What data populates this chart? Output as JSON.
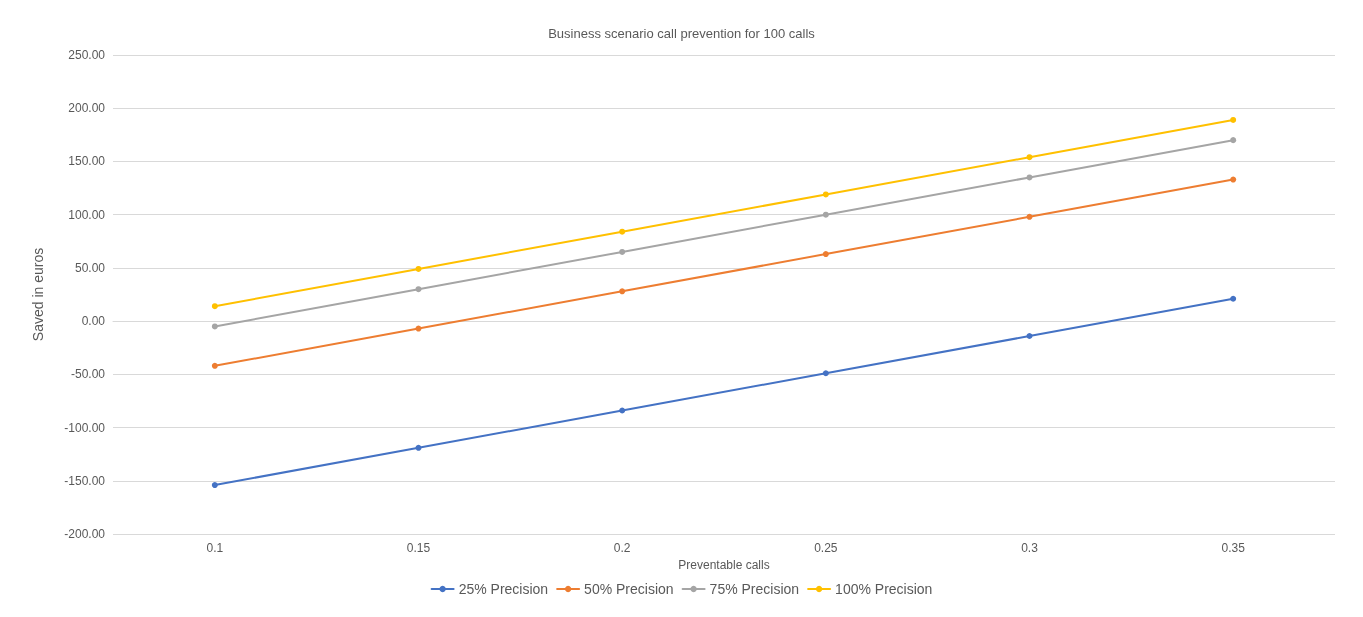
{
  "chart_data": {
    "type": "line",
    "title": "Business scenario call prevention for 100 calls",
    "xlabel": "Preventable calls",
    "ylabel": "Saved in euros",
    "categories": [
      "0.1",
      "0.15",
      "0.2",
      "0.25",
      "0.3",
      "0.35"
    ],
    "series": [
      {
        "name": "25% Precision",
        "color": "#4472c4",
        "values": [
          -154,
          -119,
          -84,
          -49,
          -14,
          21
        ]
      },
      {
        "name": "50% Precision",
        "color": "#ed7d31",
        "values": [
          -42,
          -7,
          28,
          63,
          98,
          133
        ]
      },
      {
        "name": "75% Precision",
        "color": "#a5a5a5",
        "values": [
          -5,
          30,
          65,
          100,
          135,
          170
        ]
      },
      {
        "name": "100% Precision",
        "color": "#ffc000",
        "values": [
          14,
          49,
          84,
          119,
          154,
          189
        ]
      }
    ],
    "ylim": [
      -200,
      250
    ],
    "yticks": [
      {
        "value": -200,
        "label": "-200.00"
      },
      {
        "value": -150,
        "label": "-150.00"
      },
      {
        "value": -100,
        "label": "-100.00"
      },
      {
        "value": -50,
        "label": "-50.00"
      },
      {
        "value": 0,
        "label": "0.00"
      },
      {
        "value": 50,
        "label": "50.00"
      },
      {
        "value": 100,
        "label": "100.00"
      },
      {
        "value": 150,
        "label": "150.00"
      },
      {
        "value": 200,
        "label": "200.00"
      },
      {
        "value": 250,
        "label": "250.00"
      }
    ],
    "grid": "y",
    "legend": "bottom",
    "marker": "circle",
    "line_style": "solid"
  }
}
